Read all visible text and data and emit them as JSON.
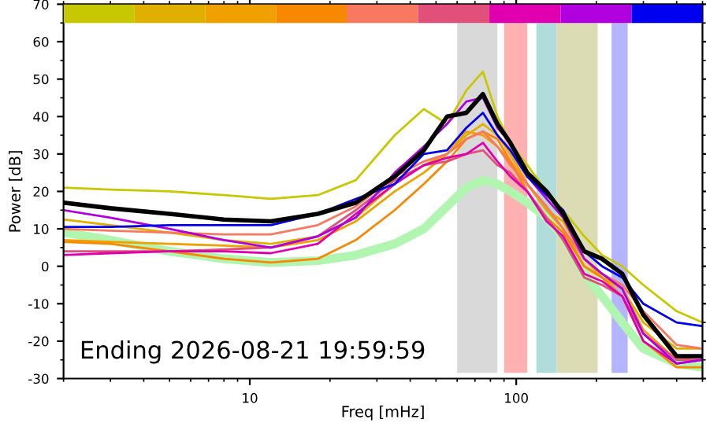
{
  "chart_data": {
    "type": "line",
    "xlabel": "Freq [mHz]",
    "ylabel": "Power [dB]",
    "annotations": [
      "Ending 2026-08-21 19:59:59"
    ],
    "log": "x",
    "xlim": [
      2,
      500
    ],
    "xticks": [
      10,
      100
    ],
    "ylim": [
      -30,
      70
    ],
    "yticks": [
      -30,
      -20,
      -10,
      0,
      10,
      20,
      30,
      40,
      50,
      60,
      70
    ],
    "grid": false,
    "legend": false,
    "marker": "none",
    "line_style": "solid",
    "x": [
      2,
      3,
      5,
      8,
      12,
      18,
      25,
      35,
      45,
      55,
      65,
      75,
      85,
      95,
      110,
      130,
      150,
      180,
      210,
      250,
      300,
      400,
      500
    ],
    "bands": [
      {
        "axis": "x",
        "from": 60,
        "to": 85,
        "color": "#d9d9d9"
      },
      {
        "axis": "x",
        "from": 90,
        "to": 110,
        "color": "#ffb0b0"
      },
      {
        "axis": "x",
        "from": 119,
        "to": 142,
        "color": "#b0dcdc"
      },
      {
        "axis": "x",
        "from": 142,
        "to": 202,
        "color": "#dcdcb4"
      },
      {
        "axis": "x",
        "from": 228,
        "to": 262,
        "color": "#b4b4ff"
      }
    ],
    "series": [
      {
        "color": "#b0f5b0",
        "values": [
          9,
          7,
          4,
          2,
          1,
          1.5,
          3,
          6,
          10,
          16,
          21,
          23,
          22,
          20,
          17,
          13,
          8,
          -2,
          -8,
          -15,
          -22,
          -26,
          -27
        ]
      },
      {
        "color": "#c8c800",
        "values": [
          21,
          20.5,
          20,
          19,
          18,
          19,
          23,
          35,
          42,
          38,
          47,
          52,
          40,
          33,
          27,
          20,
          15,
          8,
          3,
          0,
          -5,
          -12,
          -15
        ]
      },
      {
        "color": "#e0b000",
        "values": [
          12.5,
          11,
          9,
          7,
          6,
          8,
          13,
          22,
          27,
          30,
          35,
          38,
          35,
          30,
          22,
          15,
          12,
          2,
          -3,
          -6,
          -15,
          -22,
          -22
        ]
      },
      {
        "color": "#f0a000",
        "values": [
          7,
          6.5,
          6,
          5.5,
          5,
          7,
          12,
          20,
          25,
          30,
          36,
          35,
          32,
          28,
          22,
          15,
          10,
          0,
          -3,
          -6,
          -17,
          -25,
          -24
        ]
      },
      {
        "color": "#f88800",
        "values": [
          6.5,
          6,
          4,
          2,
          1,
          2,
          7,
          15,
          22,
          28,
          34,
          36,
          34,
          28,
          20,
          13,
          9,
          0,
          -3,
          -8,
          -20,
          -27,
          -27
        ]
      },
      {
        "color": "#f87860",
        "values": [
          10,
          9.5,
          9,
          8.5,
          8.5,
          11,
          16,
          24,
          28,
          30,
          34,
          36,
          32,
          27,
          22,
          16,
          10,
          2,
          -2,
          -5,
          -12,
          -21,
          -22
        ]
      },
      {
        "color": "#e05078",
        "values": [
          4,
          4,
          4,
          4.5,
          5,
          8,
          15,
          23,
          27,
          28,
          30,
          31,
          27,
          25,
          20,
          13,
          7,
          -3,
          -5,
          -8,
          -18,
          -25,
          -25
        ]
      },
      {
        "color": "#e000b0",
        "values": [
          3,
          3.5,
          4,
          4,
          3.5,
          6,
          14,
          22,
          27,
          29,
          30,
          33,
          28,
          24,
          20,
          12,
          8,
          -2,
          -4,
          -8,
          -20,
          -26,
          -25
        ]
      },
      {
        "color": "#b000e0",
        "values": [
          15,
          13,
          10,
          7,
          5,
          8,
          13,
          25,
          32,
          38,
          44,
          45,
          37,
          33,
          24,
          18,
          13,
          2,
          -2,
          -6,
          -18,
          -26,
          -25
        ]
      },
      {
        "color": "#0000f0",
        "values": [
          10.5,
          10.5,
          11,
          11,
          11,
          14,
          18,
          22,
          30,
          31,
          37,
          41,
          35,
          31,
          24,
          19,
          15,
          4,
          0,
          -3,
          -10,
          -15,
          -16
        ]
      },
      {
        "color": "#000000",
        "values": [
          17,
          15.5,
          14,
          12.5,
          12,
          14,
          17,
          24,
          31,
          40,
          41,
          46,
          38,
          33,
          25,
          20,
          14,
          4,
          2,
          -2,
          -13,
          -24,
          -24
        ]
      },
      {
        "type": "bar",
        "x": [
          2.72,
          5.02,
          9.26,
          17.0,
          31.4,
          58.3,
          107.8,
          199.6,
          368
        ],
        "base": [
          65,
          65,
          65,
          65,
          65,
          65,
          65,
          65,
          65
        ],
        "values": [
          5,
          5,
          5,
          5,
          5,
          5,
          5,
          5,
          5
        ],
        "colors": [
          "#c8c800",
          "#e0b000",
          "#f0a000",
          "#f88800",
          "#f87860",
          "#e05078",
          "#e000b0",
          "#b000e0",
          "#0000f0"
        ]
      }
    ]
  }
}
